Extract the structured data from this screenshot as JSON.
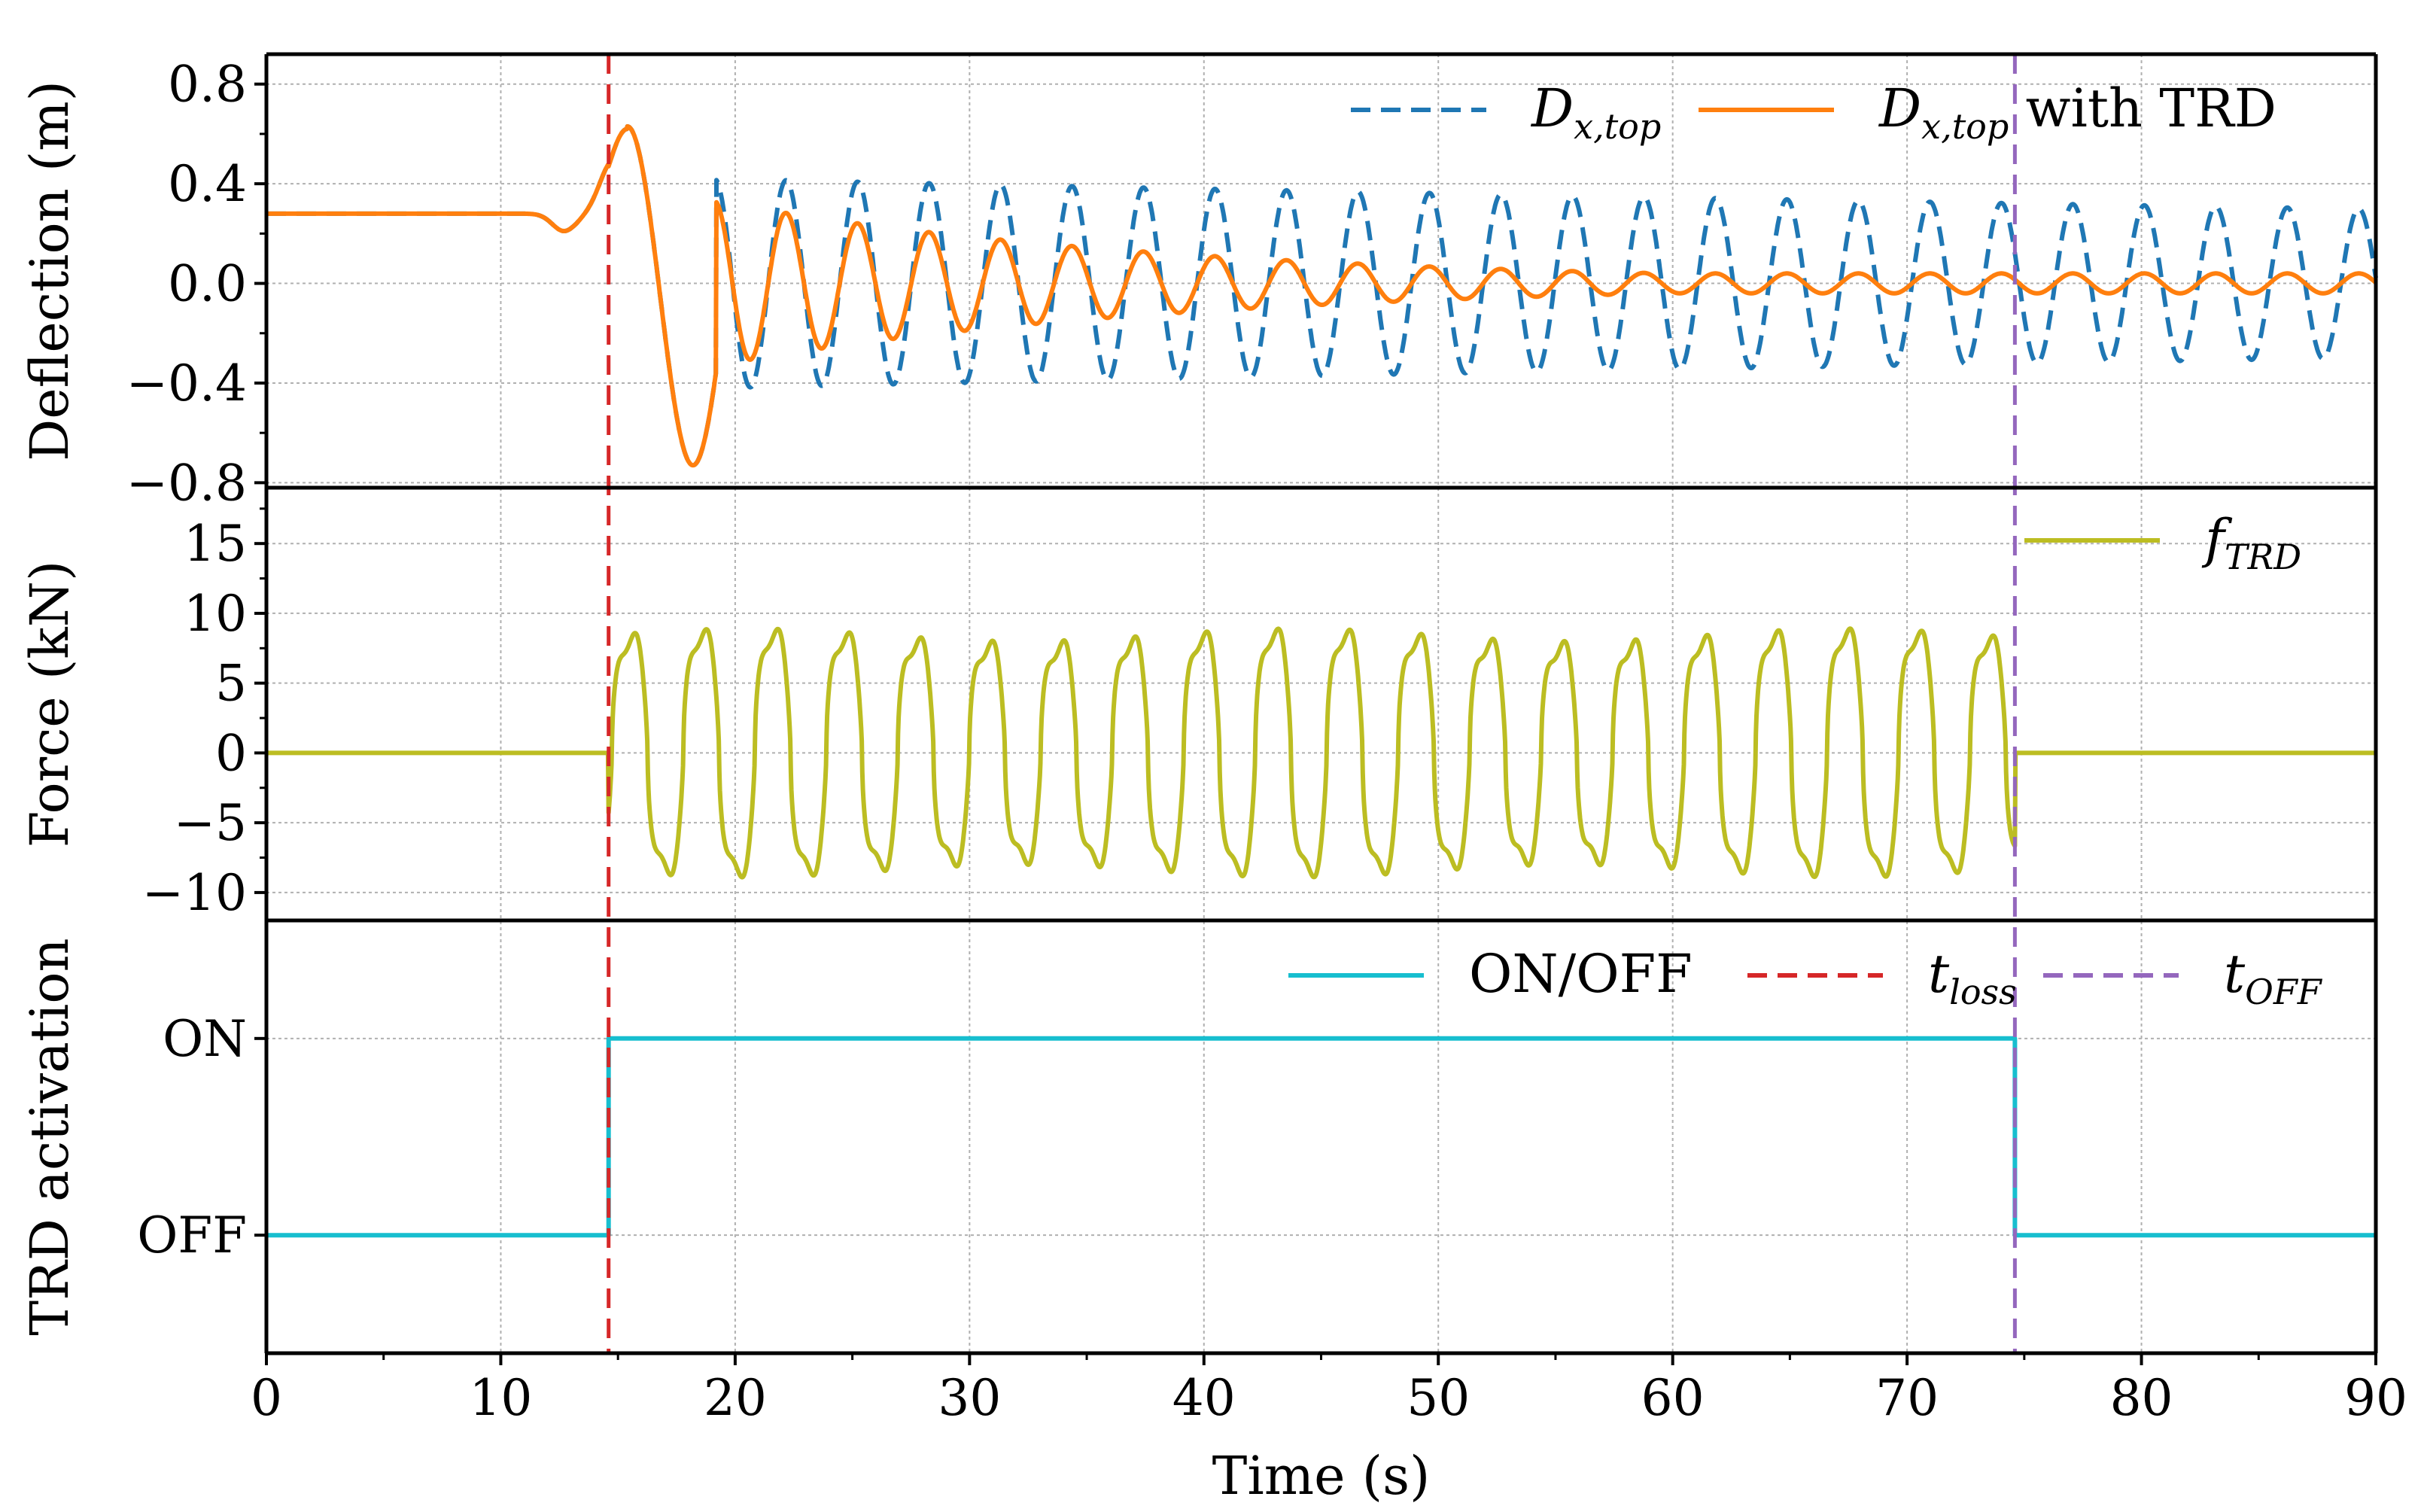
{
  "chart_data": {
    "type": "line",
    "xlabel": "Time (s)",
    "xlim": [
      0,
      90
    ],
    "xticks": [
      0,
      10,
      20,
      30,
      40,
      50,
      60,
      70,
      80,
      90
    ],
    "t_loss": 14.6,
    "t_off": 74.6,
    "panels": [
      {
        "id": "deflection",
        "ylabel": "Deflection (m)",
        "ylim": [
          -0.82,
          0.92
        ],
        "yticks": [
          0.8,
          0.4,
          0.0,
          -0.4,
          -0.8
        ],
        "ytick_labels": [
          "0.8",
          "0.4",
          "0.0",
          "−0.4",
          "−0.8"
        ],
        "legend_position": "top-right",
        "series": [
          {
            "name": "D_x,top",
            "legend_main": "D",
            "legend_sub": "x,top",
            "style": "dashed",
            "color": "#1f77b4",
            "model": {
              "static_level": 0.28,
              "period_s": 3.05,
              "amplitude_at_loss": 0.47,
              "decay_per_s": 0.0048
            }
          },
          {
            "name": "D_x,top with TRD",
            "legend_main": "D",
            "legend_sub": "x,top",
            "legend_suffix": "with TRD",
            "style": "solid",
            "color": "#ff7f0e",
            "model": {
              "static_level": 0.28,
              "period_s": 3.05,
              "amplitude_at_loss": 0.47,
              "decay_per_s": 0.052,
              "peak_after_loss": 0.62,
              "min_after_loss": -0.73
            }
          }
        ]
      },
      {
        "id": "force",
        "ylabel": "Force (kN)",
        "ylim": [
          -12,
          19
        ],
        "yticks": [
          15,
          10,
          5,
          0,
          -5,
          -10
        ],
        "ytick_labels": [
          "15",
          "10",
          "5",
          "0",
          "−5",
          "−10"
        ],
        "legend_position": "top-right",
        "series": [
          {
            "name": "f_TRD",
            "legend_main": "f",
            "legend_sub": "TRD",
            "style": "solid",
            "color": "#bcbd22",
            "model": {
              "active_from_s": 14.6,
              "active_until_s": 74.6,
              "period_s": 3.05,
              "max_kN": 9.5,
              "min_kN": -9.5,
              "inactive_kN": 0
            }
          }
        ]
      },
      {
        "id": "activation",
        "ylabel": "TRD activation",
        "ylim": [
          -0.6,
          1.6
        ],
        "yticks": [
          1,
          0
        ],
        "ytick_labels": [
          "ON",
          "OFF"
        ],
        "legend_position": "top-right",
        "series": [
          {
            "name": "ON/OFF",
            "legend_main": "ON/OFF",
            "style": "solid",
            "color": "#17becf",
            "points": [
              [
                0,
                0
              ],
              [
                14.6,
                0
              ],
              [
                14.6,
                1
              ],
              [
                74.6,
                1
              ],
              [
                74.6,
                0
              ],
              [
                90,
                0
              ]
            ]
          },
          {
            "name": "t_loss",
            "legend_main": "t",
            "legend_sub": "loss",
            "style": "dashed",
            "color": "#d62728",
            "x": 14.6
          },
          {
            "name": "t_OFF",
            "legend_main": "t",
            "legend_sub": "OFF",
            "style": "dashed",
            "color": "#9467bd",
            "x": 74.6
          }
        ]
      }
    ]
  }
}
